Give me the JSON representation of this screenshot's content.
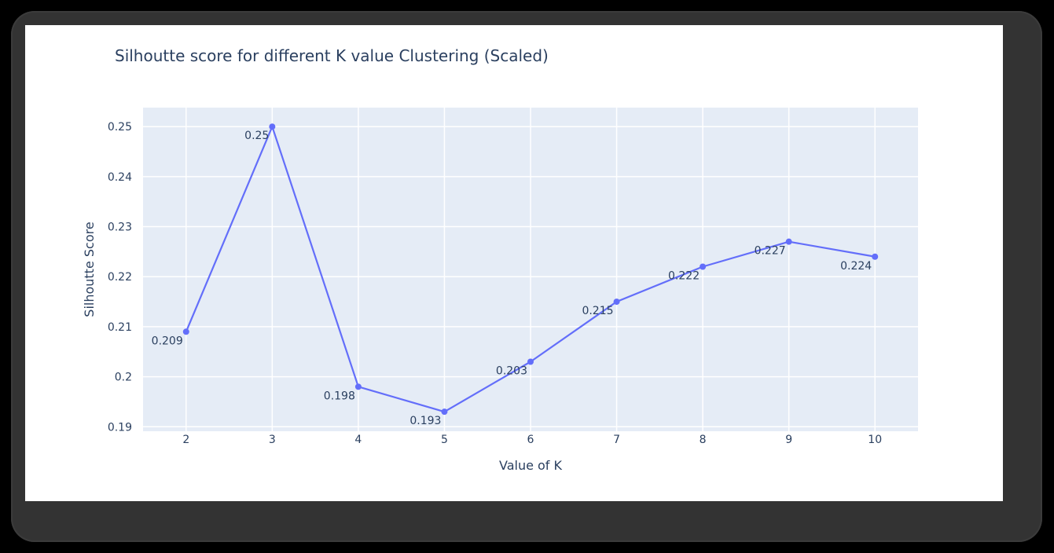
{
  "chart_data": {
    "type": "line",
    "title": "Silhoutte score for different K value Clustering (Scaled)",
    "xlabel": "Value of K",
    "ylabel": "Silhoutte Score",
    "x": [
      2,
      3,
      4,
      5,
      6,
      7,
      8,
      9,
      10
    ],
    "series": [
      {
        "name": "Silhoutte Score",
        "values": [
          0.209,
          0.25,
          0.198,
          0.193,
          0.203,
          0.215,
          0.222,
          0.227,
          0.224
        ],
        "labels": [
          "0.209",
          "0.25",
          "0.198",
          "0.193",
          "0.203",
          "0.215",
          "0.222",
          "0.227",
          "0.224"
        ],
        "color": "#636efa",
        "mode": "lines+markers+text",
        "textposition": "bottom left"
      }
    ],
    "xticks": [
      "2",
      "3",
      "4",
      "5",
      "6",
      "7",
      "8",
      "9",
      "10"
    ],
    "yticks": [
      "0.19",
      "0.2",
      "0.21",
      "0.22",
      "0.23",
      "0.24",
      "0.25"
    ],
    "ytick_values": [
      0.19,
      0.2,
      0.21,
      0.22,
      0.23,
      0.24,
      0.25
    ],
    "xlim": [
      1.5,
      10.5
    ],
    "ylim": [
      0.1891,
      0.2538
    ],
    "grid": true,
    "legend": "none",
    "colors": {
      "plot_bg": "#e5ecf6",
      "paper_bg": "#ffffff",
      "grid": "#ffffff",
      "line": "#636efa",
      "text": "#2a3f5f"
    }
  }
}
